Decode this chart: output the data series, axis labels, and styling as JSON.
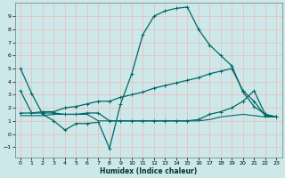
{
  "xlabel": "Humidex (Indice chaleur)",
  "background_color": "#cce8e8",
  "grid_color": "#f0b8b8",
  "line_color": "#006868",
  "xlim": [
    -0.5,
    23.5
  ],
  "ylim": [
    -1.8,
    10.0
  ],
  "xticks": [
    0,
    1,
    2,
    3,
    4,
    5,
    6,
    7,
    8,
    9,
    10,
    11,
    12,
    13,
    14,
    15,
    16,
    17,
    18,
    19,
    20,
    21,
    22,
    23
  ],
  "yticks": [
    -1,
    0,
    1,
    2,
    3,
    4,
    5,
    6,
    7,
    8,
    9
  ],
  "curves": [
    {
      "x": [
        0,
        1,
        2,
        3,
        4,
        5,
        6,
        7,
        8,
        9,
        10,
        11,
        12,
        13,
        14,
        15,
        16,
        17,
        18,
        19,
        20,
        21,
        22,
        23
      ],
      "y": [
        5.0,
        3.1,
        1.5,
        1.0,
        0.3,
        0.8,
        0.8,
        0.9,
        -1.1,
        2.3,
        4.6,
        7.6,
        9.0,
        9.4,
        9.6,
        9.7,
        8.0,
        6.8,
        6.0,
        5.2,
        3.2,
        2.1,
        1.5,
        1.3
      ],
      "marker": true,
      "lw": 0.9
    },
    {
      "x": [
        0,
        1,
        2,
        3,
        4,
        5,
        6,
        7,
        8,
        9,
        10,
        11,
        12,
        13,
        14,
        15,
        16,
        17,
        18,
        19,
        20,
        21,
        22,
        23
      ],
      "y": [
        3.3,
        1.6,
        1.7,
        1.7,
        2.0,
        2.1,
        2.3,
        2.5,
        2.5,
        2.8,
        3.0,
        3.2,
        3.5,
        3.7,
        3.9,
        4.1,
        4.3,
        4.6,
        4.8,
        5.0,
        3.3,
        2.5,
        1.4,
        1.3
      ],
      "marker": true,
      "lw": 0.9
    },
    {
      "x": [
        0,
        1,
        2,
        3,
        4,
        5,
        6,
        7,
        8,
        9,
        10,
        11,
        12,
        13,
        14,
        15,
        16,
        17,
        18,
        19,
        20,
        21,
        22,
        23
      ],
      "y": [
        1.6,
        1.6,
        1.6,
        1.6,
        1.5,
        1.5,
        1.6,
        1.6,
        1.0,
        1.0,
        1.0,
        1.0,
        1.0,
        1.0,
        1.0,
        1.0,
        1.1,
        1.5,
        1.7,
        2.0,
        2.5,
        3.3,
        1.5,
        1.3
      ],
      "marker": true,
      "lw": 0.9
    },
    {
      "x": [
        0,
        1,
        2,
        3,
        4,
        5,
        6,
        7,
        8,
        9,
        10,
        11,
        12,
        13,
        14,
        15,
        16,
        17,
        18,
        19,
        20,
        21,
        22,
        23
      ],
      "y": [
        1.4,
        1.4,
        1.4,
        1.5,
        1.5,
        1.5,
        1.5,
        1.0,
        1.0,
        1.0,
        1.0,
        1.0,
        1.0,
        1.0,
        1.0,
        1.0,
        1.0,
        1.1,
        1.3,
        1.4,
        1.5,
        1.4,
        1.3,
        1.3
      ],
      "marker": false,
      "lw": 0.8
    }
  ]
}
